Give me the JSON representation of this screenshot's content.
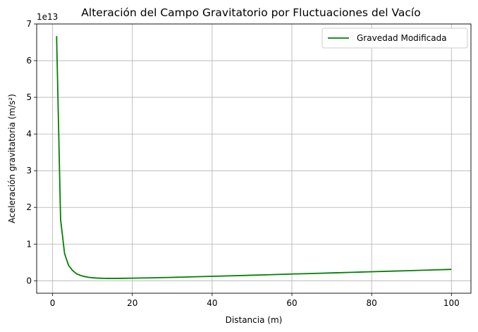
{
  "chart_data": {
    "type": "line",
    "title": "Alteración del Campo Gravitatorio por Fluctuaciones del Vacío",
    "xlabel": "Distancia (m)",
    "ylabel": "Aceleración gravitatoria (m/s²)",
    "offset_label": "1e13",
    "xlim": [
      -4,
      104.9
    ],
    "ylim": [
      -0.34,
      7.0
    ],
    "y_multiplier": 10000000000000.0,
    "xticks": [
      0,
      20,
      40,
      60,
      80,
      100
    ],
    "yticks": [
      0,
      1,
      2,
      3,
      4,
      5,
      6,
      7
    ],
    "grid": true,
    "legend_position": "top-right",
    "series": [
      {
        "name": "Gravedad Modificada",
        "color": "#008000",
        "x": [
          1,
          2,
          3,
          4,
          5,
          6,
          7,
          8,
          9,
          10,
          11,
          12,
          13,
          14,
          15,
          16,
          18,
          20,
          25,
          30,
          35,
          40,
          45,
          50,
          55,
          60,
          65,
          70,
          75,
          80,
          85,
          90,
          95,
          100
        ],
        "y": [
          6.67,
          1.67,
          0.74,
          0.42,
          0.28,
          0.19,
          0.145,
          0.115,
          0.095,
          0.082,
          0.074,
          0.069,
          0.066,
          0.065,
          0.065,
          0.065,
          0.067,
          0.07,
          0.081,
          0.093,
          0.107,
          0.121,
          0.136,
          0.151,
          0.167,
          0.183,
          0.198,
          0.214,
          0.23,
          0.246,
          0.262,
          0.278,
          0.294,
          0.31
        ]
      }
    ]
  }
}
